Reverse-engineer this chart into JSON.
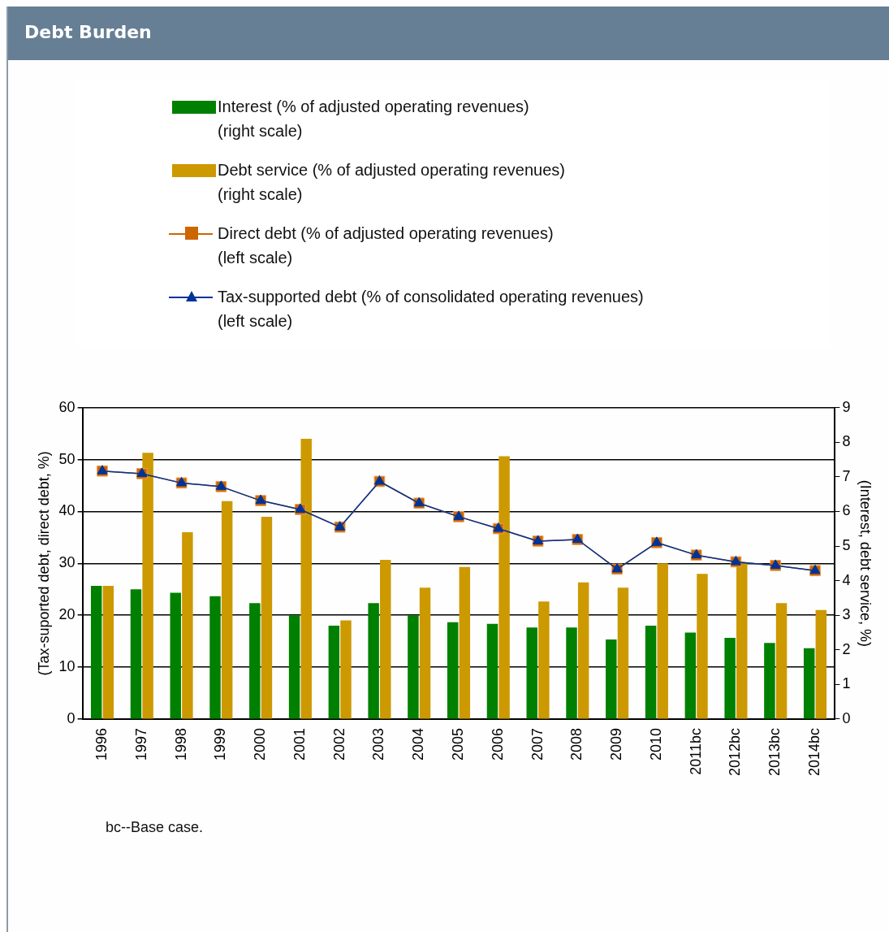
{
  "chart_data": {
    "type": "bar",
    "title": "Debt Burden",
    "categories": [
      "1996",
      "1997",
      "1998",
      "1999",
      "2000",
      "2001",
      "2002",
      "2003",
      "2004",
      "2005",
      "2006",
      "2007",
      "2008",
      "2009",
      "2010",
      "2011bc",
      "2012bc",
      "2013bc",
      "2014bc"
    ],
    "series": [
      {
        "name": "Interest (% of adjusted operating revenues)\n(right scale)",
        "axis": "y2",
        "color": "#008000",
        "values": [
          3.85,
          3.75,
          3.65,
          3.55,
          3.35,
          3.0,
          2.7,
          3.35,
          3.0,
          2.8,
          2.75,
          2.65,
          2.65,
          2.3,
          2.7,
          2.5,
          2.35,
          2.2,
          2.05
        ]
      },
      {
        "name": "Debt service (% of adjusted operating revenues)\n(right scale)",
        "axis": "y2",
        "color": "#cc9900",
        "values": [
          3.85,
          7.7,
          5.4,
          6.3,
          5.85,
          8.1,
          2.85,
          4.6,
          3.8,
          4.4,
          7.6,
          3.4,
          3.95,
          3.8,
          4.5,
          4.2,
          4.5,
          3.35,
          3.15
        ]
      },
      {
        "name": "Direct debt (% of adjusted operating revenues)\n(left scale)",
        "type": "line",
        "marker": "square",
        "color": "#cc6600",
        "values": [
          47.8,
          47.3,
          45.5,
          44.8,
          42.1,
          40.4,
          37.0,
          45.8,
          41.6,
          39.0,
          36.7,
          34.3,
          34.6,
          28.9,
          34.0,
          31.6,
          30.3,
          29.6,
          28.6
        ]
      },
      {
        "name": "Tax-supported debt (% of consolidated operating revenues)\n(left scale)",
        "type": "line",
        "marker": "triangle",
        "color": "#003399",
        "values": [
          47.8,
          47.3,
          45.5,
          44.8,
          42.1,
          40.4,
          37.0,
          45.8,
          41.6,
          39.0,
          36.7,
          34.3,
          34.6,
          28.9,
          34.0,
          31.6,
          30.3,
          29.6,
          28.6
        ]
      }
    ],
    "ylabel": "(Tax-suported debt, direct debt, %)",
    "y2label": "(Interest, debt service, %)",
    "ylim": [
      0,
      60
    ],
    "yticks": [
      0,
      10,
      20,
      30,
      40,
      50,
      60
    ],
    "y2lim": [
      0,
      9
    ],
    "y2ticks": [
      0,
      1,
      2,
      3,
      4,
      5,
      6,
      7,
      8,
      9
    ],
    "grid": "y",
    "legend": "top",
    "annotations": [
      "bc--Base case."
    ]
  }
}
